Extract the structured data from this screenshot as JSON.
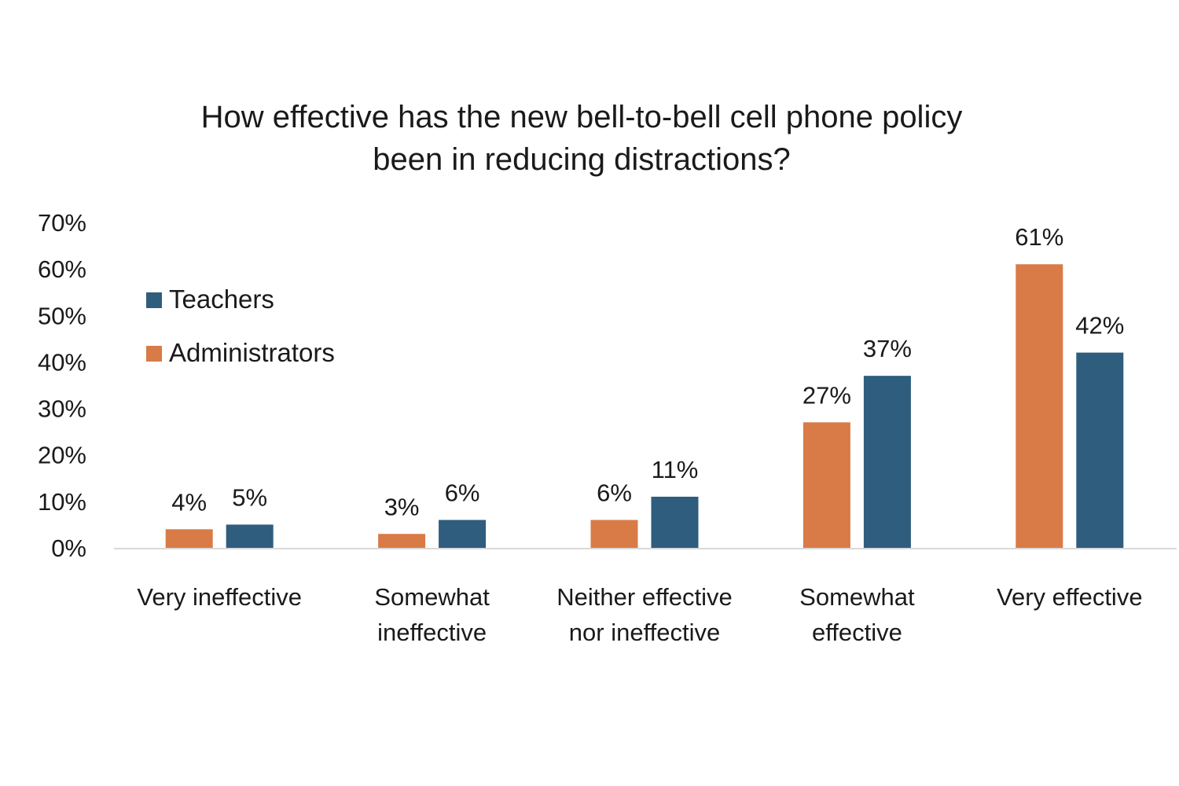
{
  "chart_data": {
    "type": "bar",
    "title_lines": [
      "How effective has the new bell-to-bell cell phone policy",
      "been in reducing distractions?"
    ],
    "categories": [
      [
        "Very ineffective"
      ],
      [
        "Somewhat",
        "ineffective"
      ],
      [
        "Neither effective",
        "nor ineffective"
      ],
      [
        "Somewhat",
        "effective"
      ],
      [
        "Very effective"
      ]
    ],
    "series": [
      {
        "name": "Administrators",
        "color": "#d97b47",
        "values": [
          4,
          3,
          6,
          27,
          61
        ],
        "labels": [
          "4%",
          "3%",
          "6%",
          "27%",
          "61%"
        ]
      },
      {
        "name": "Teachers",
        "color": "#2e5d7e",
        "values": [
          5,
          6,
          11,
          37,
          42
        ],
        "labels": [
          "5%",
          "6%",
          "11%",
          "37%",
          "42%"
        ]
      }
    ],
    "legend_order": [
      "Teachers",
      "Administrators"
    ],
    "legend_position": "top-left",
    "ylim": [
      0,
      70
    ],
    "yticks": [
      0,
      10,
      20,
      30,
      40,
      50,
      60,
      70
    ],
    "ytick_labels": [
      "0%",
      "10%",
      "20%",
      "30%",
      "40%",
      "50%",
      "60%",
      "70%"
    ],
    "grid": false,
    "axis_color": "#d9d9d9"
  }
}
